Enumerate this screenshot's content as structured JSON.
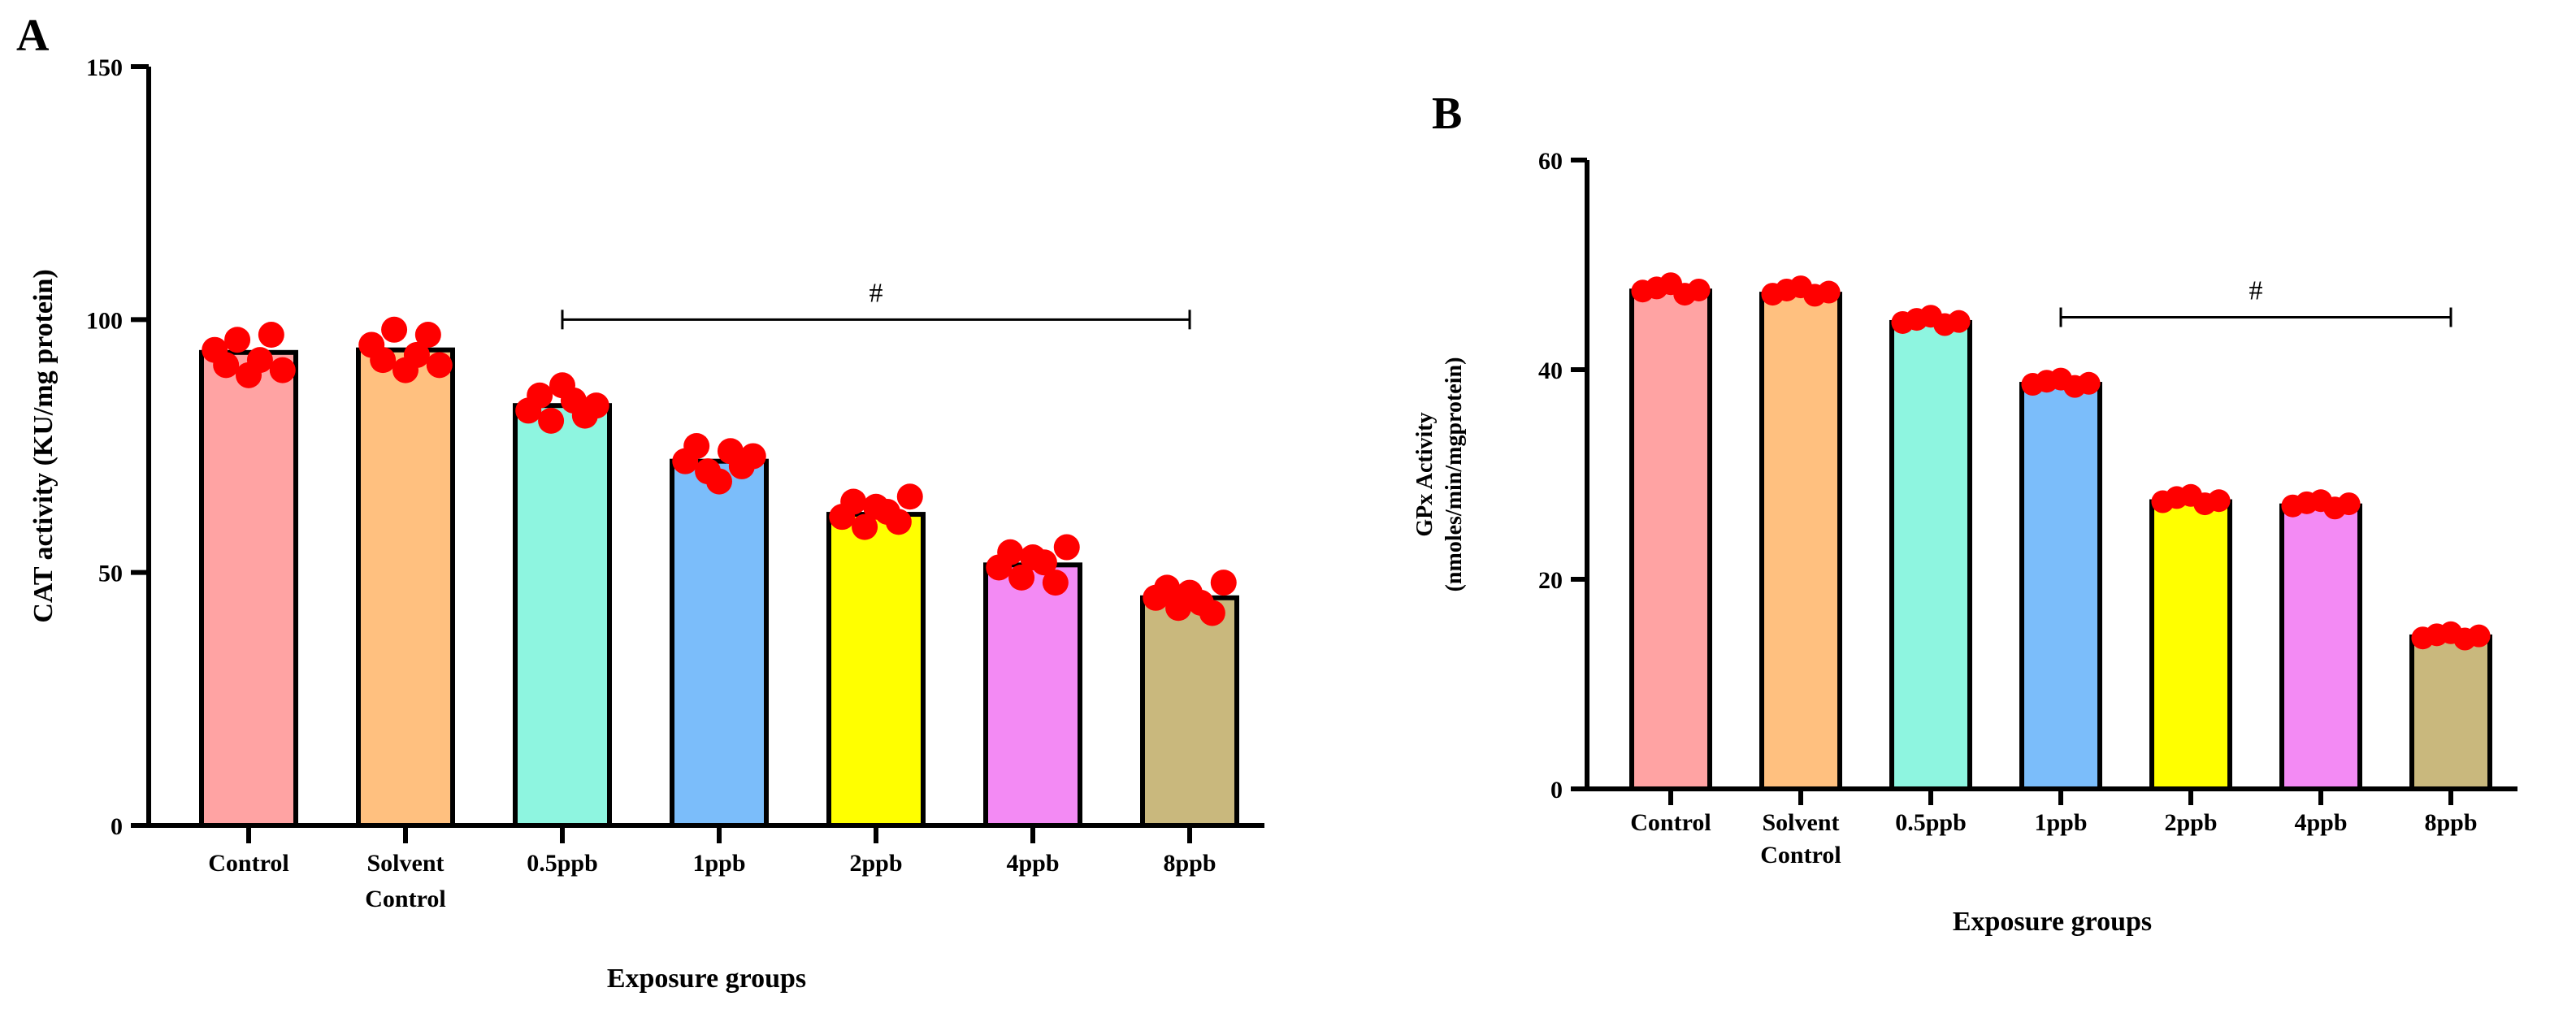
{
  "colors": {
    "bars": [
      "#ffa3a3",
      "#ffc07f",
      "#8ef5e0",
      "#7bbdfa",
      "#ffff00",
      "#f38af4",
      "#c9b87d"
    ],
    "points": "#ff0000",
    "outline": "#000000"
  },
  "chart_data": [
    {
      "id": "A",
      "panel_label": "A",
      "type": "bar",
      "categories": [
        "Control",
        "Solvent Control",
        "0.5ppb",
        "1ppb",
        "2ppb",
        "4ppb",
        "8ppb"
      ],
      "category_lines": [
        [
          "Control"
        ],
        [
          "Solvent",
          "Control"
        ],
        [
          "0.5ppb"
        ],
        [
          "1ppb"
        ],
        [
          "2ppb"
        ],
        [
          "4ppb"
        ],
        [
          "8ppb"
        ]
      ],
      "values": [
        93.5,
        94,
        83,
        72,
        61.5,
        51.5,
        45
      ],
      "points": [
        [
          94,
          91,
          96,
          89,
          92,
          97,
          90
        ],
        [
          95,
          92,
          98,
          90,
          93,
          97,
          91
        ],
        [
          82,
          85,
          80,
          87,
          84,
          81,
          83
        ],
        [
          72,
          75,
          70,
          68,
          74,
          71,
          73
        ],
        [
          61,
          64,
          59,
          63,
          62,
          60,
          65
        ],
        [
          51,
          54,
          49,
          53,
          52,
          48,
          55
        ],
        [
          45,
          47,
          43,
          46,
          44,
          42,
          48
        ]
      ],
      "ylabel": "CAT activity (KU/mg protein)",
      "xlabel": "Exposure groups",
      "ylim": [
        0,
        150
      ],
      "yticks": [
        0,
        50,
        100,
        150
      ],
      "significance": {
        "label": "#",
        "from": "0.5ppb",
        "to": "8ppb",
        "y": 100
      }
    },
    {
      "id": "B",
      "panel_label": "B",
      "type": "bar",
      "categories": [
        "Control",
        "Solvent Control",
        "0.5ppb",
        "1ppb",
        "2ppb",
        "4ppb",
        "8ppb"
      ],
      "category_lines": [
        [
          "Control"
        ],
        [
          "Solvent",
          "Control"
        ],
        [
          "0.5ppb"
        ],
        [
          "1ppb"
        ],
        [
          "2ppb"
        ],
        [
          "4ppb"
        ],
        [
          "8ppb"
        ]
      ],
      "values": [
        47.5,
        47.2,
        44.5,
        38.6,
        27.4,
        27,
        14.5
      ],
      "points": [
        [
          47.5,
          47.8,
          48.2,
          47.2,
          47.6
        ],
        [
          47.2,
          47.6,
          47.9,
          47.1,
          47.4
        ],
        [
          44.5,
          44.8,
          45.1,
          44.3,
          44.6
        ],
        [
          38.6,
          38.9,
          39.1,
          38.4,
          38.7
        ],
        [
          27.4,
          27.8,
          28.0,
          27.2,
          27.5
        ],
        [
          27.0,
          27.3,
          27.5,
          26.8,
          27.2
        ],
        [
          14.4,
          14.7,
          14.9,
          14.3,
          14.6
        ]
      ],
      "ylabel_lines": [
        "GPx Activity",
        "(nmoles/min/mgprotein)"
      ],
      "xlabel": "Exposure groups",
      "ylim": [
        0,
        60
      ],
      "yticks": [
        0,
        20,
        40,
        60
      ],
      "significance": {
        "label": "#",
        "from": "1ppb",
        "to": "8ppb",
        "y": 45
      }
    }
  ]
}
